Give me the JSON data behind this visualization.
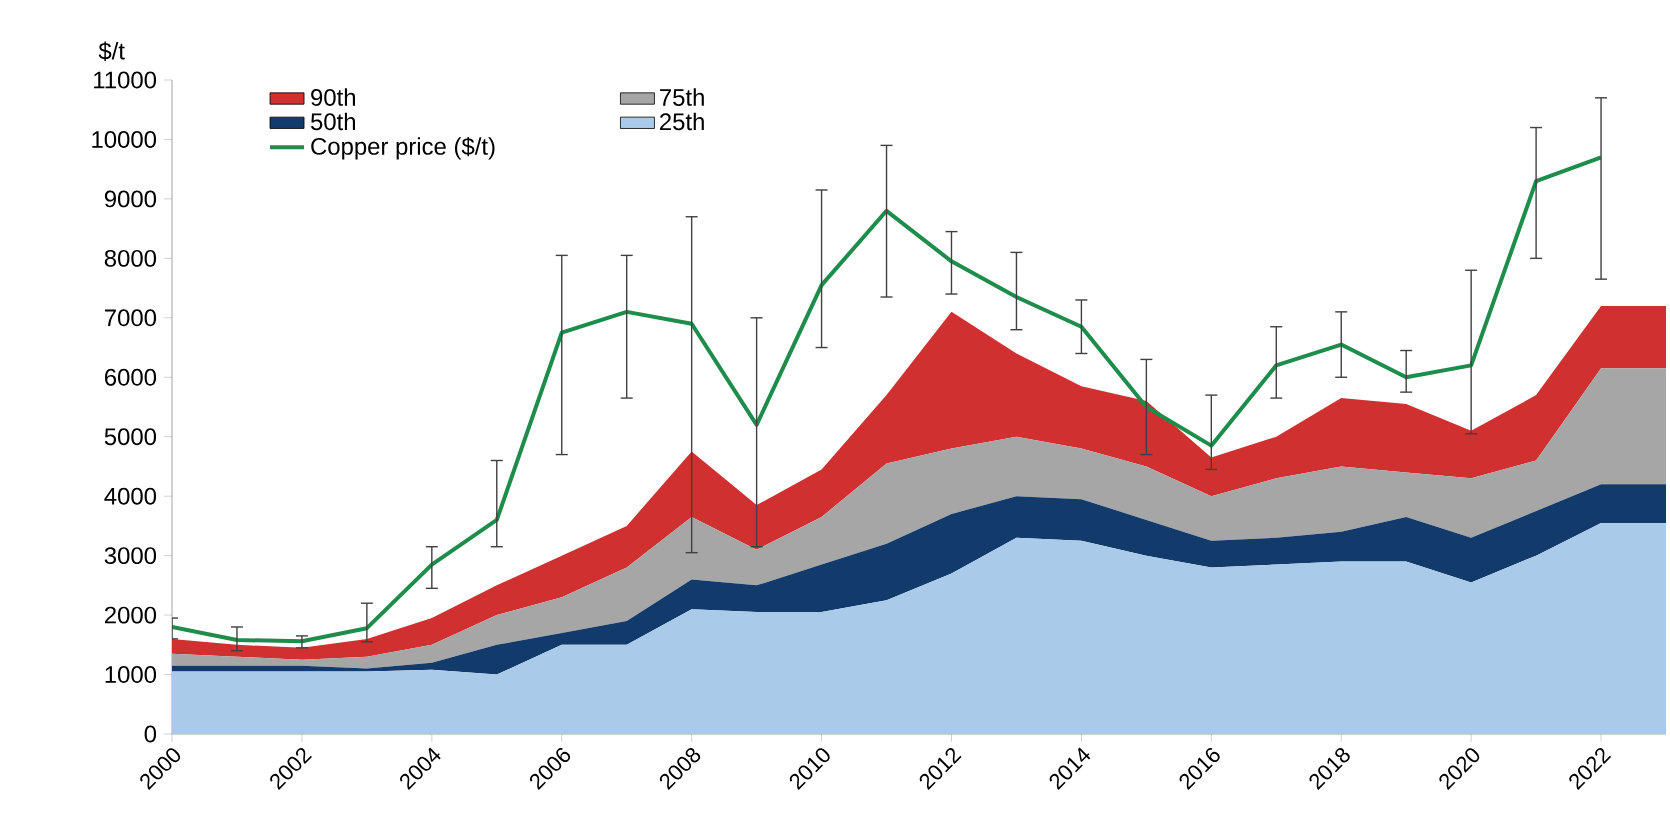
{
  "chart_data": {
    "type": "area",
    "stacked": true,
    "ylabel": "$/t",
    "legend": "top left",
    "x": [
      2000,
      2001,
      2002,
      2003,
      2004,
      2005,
      2006,
      2007,
      2008,
      2009,
      2010,
      2011,
      2012,
      2013,
      2014,
      2015,
      2016,
      2017,
      2018,
      2019,
      2020,
      2021,
      2022,
      2023
    ],
    "xlim": [
      2000,
      2023
    ],
    "xticks": [
      2000,
      2002,
      2004,
      2006,
      2008,
      2010,
      2012,
      2014,
      2016,
      2018,
      2020,
      2022
    ],
    "ylim": [
      0,
      11000
    ],
    "yticks": [
      0,
      1000,
      2000,
      3000,
      4000,
      5000,
      6000,
      7000,
      8000,
      9000,
      10000,
      11000
    ],
    "series": [
      {
        "name": "25th",
        "color": "#a9cbe9",
        "values": [
          1050,
          1050,
          1050,
          1050,
          1080,
          1000,
          1500,
          1500,
          2100,
          2050,
          2050,
          2250,
          2700,
          3300,
          3250,
          3000,
          2800,
          2850,
          2900,
          2900,
          2550,
          3000,
          3550,
          3550
        ]
      },
      {
        "name": "50th",
        "color": "#123a6b",
        "values": [
          100,
          100,
          100,
          50,
          120,
          500,
          200,
          400,
          500,
          450,
          800,
          950,
          1000,
          700,
          700,
          600,
          450,
          450,
          500,
          750,
          750,
          750,
          650,
          650
        ]
      },
      {
        "name": "75th",
        "color": "#a6a6a6",
        "values": [
          200,
          150,
          100,
          200,
          300,
          500,
          600,
          900,
          1050,
          600,
          800,
          1350,
          1100,
          1000,
          850,
          900,
          750,
          1000,
          1100,
          750,
          1000,
          850,
          1950,
          1950
        ]
      },
      {
        "name": "90th",
        "color": "#d0302f",
        "values": [
          250,
          200,
          200,
          300,
          450,
          500,
          700,
          700,
          1100,
          750,
          800,
          1150,
          2300,
          1400,
          1050,
          1100,
          650,
          700,
          1150,
          1150,
          800,
          1100,
          1050,
          1050
        ]
      },
      {
        "name": "Copper price ($/t)",
        "type": "line",
        "color": "#1e8c4a",
        "x": [
          2000,
          2001,
          2002,
          2003,
          2004,
          2005,
          2006,
          2007,
          2008,
          2009,
          2010,
          2011,
          2012,
          2013,
          2014,
          2015,
          2016,
          2017,
          2018,
          2019,
          2020,
          2021,
          2022
        ],
        "values": [
          1800,
          1580,
          1560,
          1780,
          2850,
          3600,
          6750,
          7100,
          6900,
          5200,
          7550,
          8800,
          7950,
          7350,
          6850,
          5500,
          4850,
          6200,
          6550,
          6000,
          6200,
          9300,
          9700
        ],
        "errors": [
          [
            1600,
            1950
          ],
          [
            1400,
            1800
          ],
          [
            1450,
            1650
          ],
          [
            1550,
            2200
          ],
          [
            2450,
            3150
          ],
          [
            3150,
            4600
          ],
          [
            4700,
            8050
          ],
          [
            5650,
            8050
          ],
          [
            3050,
            8700
          ],
          [
            3150,
            7000
          ],
          [
            6500,
            9150
          ],
          [
            7350,
            9900
          ],
          [
            7400,
            8450
          ],
          [
            6800,
            8100
          ],
          [
            6400,
            7300
          ],
          [
            4700,
            6300
          ],
          [
            4450,
            5700
          ],
          [
            5650,
            6850
          ],
          [
            6000,
            7100
          ],
          [
            5750,
            6450
          ],
          [
            5050,
            7800
          ],
          [
            8000,
            10200
          ],
          [
            7650,
            10700
          ]
        ]
      }
    ]
  }
}
